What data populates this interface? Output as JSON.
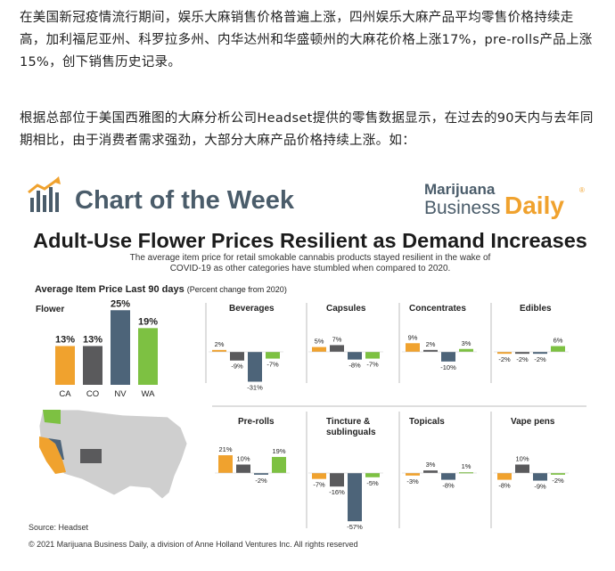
{
  "article": {
    "paragraph1": "在美国新冠疫情流行期间，娱乐大麻销售价格普遍上涨，四州娱乐大麻产品平均零售价格持续走高，加利福尼亚州、科罗拉多州、内华达州和华盛顿州的大麻花价格上涨17%，pre-rolls产品上涨15%，创下销售历史记录。",
    "paragraph2": "根据总部位于美国西雅图的大麻分析公司Headset提供的零售数据显示，在过去的90天内与去年同期相比，由于消费者需求强劲，大部分大麻产品价格持续上涨。如："
  },
  "infographic": {
    "header": "Chart of the Week",
    "brand_line1": "Marijuana",
    "brand_line2a": "Business",
    "brand_line2b": "Daily",
    "brand_mark": "®",
    "title": "Adult-Use Flower Prices Resilient as Demand Increases",
    "subtitle_line1": "The average item price for retail smokable cannabis products stayed resilient in the wake of",
    "subtitle_line2": "COVID-19 as other categories have stumbled when compared to 2020.",
    "section_label": "Average Item Price Last 90 days",
    "section_note": "(Percent change from 2020)",
    "source": "Source: Headset",
    "copyright": "© 2021 Marijuana Business Daily, a division of Anne Holland Ventures Inc. All rights reserved"
  },
  "colors": {
    "CA": "#f0a22e",
    "CO": "#5a5a5c",
    "NV": "#4d6479",
    "WA": "#7dc142",
    "title": "#4a5c6a",
    "brand_orange": "#f0a22e"
  },
  "chart_data": [
    {
      "type": "bar",
      "title": "Flower",
      "categories": [
        "CA",
        "CO",
        "NV",
        "WA"
      ],
      "values": [
        13,
        13,
        25,
        19
      ],
      "unit": "%"
    },
    {
      "type": "bar",
      "title": "Beverages",
      "categories": [
        "CA",
        "CO",
        "NV",
        "WA"
      ],
      "values": [
        2,
        -9,
        -31,
        -7
      ],
      "unit": "%"
    },
    {
      "type": "bar",
      "title": "Capsules",
      "categories": [
        "CA",
        "CO",
        "NV",
        "WA"
      ],
      "values": [
        5,
        7,
        -8,
        -7
      ],
      "unit": "%"
    },
    {
      "type": "bar",
      "title": "Concentrates",
      "categories": [
        "CA",
        "CO",
        "NV",
        "WA"
      ],
      "values": [
        9,
        2,
        -10,
        3
      ],
      "unit": "%"
    },
    {
      "type": "bar",
      "title": "Edibles",
      "categories": [
        "CA",
        "CO",
        "NV",
        "WA"
      ],
      "values": [
        -2,
        -2,
        -2,
        6
      ],
      "unit": "%"
    },
    {
      "type": "bar",
      "title": "Pre-rolls",
      "categories": [
        "CA",
        "CO",
        "NV",
        "WA"
      ],
      "values": [
        21,
        10,
        -2,
        19
      ],
      "unit": "%"
    },
    {
      "type": "bar",
      "title_line1": "Tincture &",
      "title_line2": "sublinguals",
      "categories": [
        "CA",
        "CO",
        "NV",
        "WA"
      ],
      "values": [
        -7,
        -16,
        -57,
        -5
      ],
      "unit": "%"
    },
    {
      "type": "bar",
      "title": "Topicals",
      "categories": [
        "CA",
        "CO",
        "NV",
        "WA"
      ],
      "values": [
        -3,
        3,
        -8,
        1
      ],
      "unit": "%"
    },
    {
      "type": "bar",
      "title": "Vape pens",
      "categories": [
        "CA",
        "CO",
        "NV",
        "WA"
      ],
      "values": [
        -8,
        10,
        -9,
        -2
      ],
      "unit": "%"
    }
  ]
}
